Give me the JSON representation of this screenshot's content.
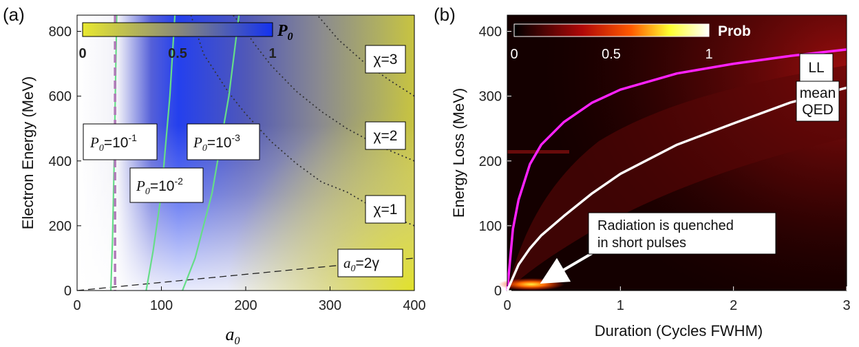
{
  "chart_data": [
    {
      "panel_label": "(a)",
      "type": "heatmap",
      "xlabel": "a",
      "xlabel_sub": "0",
      "ylabel": "Electron Energy (MeV)",
      "xlim": [
        0,
        400
      ],
      "ylim": [
        0,
        850
      ],
      "xticks": [
        "0",
        "100",
        "200",
        "300",
        "400"
      ],
      "yticks": [
        "0",
        "200",
        "400",
        "600",
        "800"
      ],
      "colorbar": {
        "label": "P",
        "label_sub": "0",
        "ticks": [
          "0",
          "0.5",
          "1"
        ],
        "range": [
          0,
          1
        ],
        "colors": [
          "#e8e830",
          "#8a8a78",
          "#1432f0"
        ]
      },
      "p0_contours": [
        {
          "level": "10",
          "exp": "-1",
          "color": "#66dd88",
          "points": [
            [
              40,
              0
            ],
            [
              42,
              150
            ],
            [
              44,
              400
            ],
            [
              46,
              700
            ],
            [
              47,
              850
            ]
          ]
        },
        {
          "level": "10",
          "exp": "-2",
          "color": "#66dd88",
          "points": [
            [
              82,
              0
            ],
            [
              90,
              120
            ],
            [
              100,
              300
            ],
            [
              110,
              600
            ],
            [
              116,
              850
            ]
          ]
        },
        {
          "level": "10",
          "exp": "-3",
          "color": "#66dd88",
          "points": [
            [
              125,
              0
            ],
            [
              140,
              100
            ],
            [
              160,
              300
            ],
            [
              180,
              600
            ],
            [
              192,
              850
            ]
          ]
        }
      ],
      "chi_contours": [
        {
          "label": "χ=1",
          "points": [
            [
              400,
              200
            ],
            [
              360,
              243
            ],
            [
              320,
              304
            ],
            [
              290,
              335
            ],
            [
              260,
              392
            ],
            [
              230,
              460
            ],
            [
              200,
              545
            ],
            [
              180,
              610
            ],
            [
              150,
              730
            ],
            [
              135,
              850
            ]
          ]
        },
        {
          "label": "χ=2",
          "points": [
            [
              400,
              400
            ],
            [
              360,
              444
            ],
            [
              320,
              500
            ],
            [
              290,
              552
            ],
            [
              260,
              615
            ],
            [
              230,
              695
            ],
            [
              210,
              762
            ],
            [
              195,
              820
            ],
            [
              185,
              850
            ]
          ]
        },
        {
          "label": "χ=3",
          "points": [
            [
              400,
              600
            ],
            [
              370,
              650
            ],
            [
              340,
              705
            ],
            [
              310,
              774
            ],
            [
              285,
              850
            ]
          ]
        }
      ],
      "vline": {
        "x": 45,
        "color": "#b07ab8"
      },
      "line_a0_2gamma": {
        "label_prefix": "a",
        "label_sub": "0",
        "label_suffix": "=2γ",
        "points": [
          [
            0,
            0
          ],
          [
            400,
            100
          ]
        ]
      },
      "box_labels": [
        {
          "prefix": "P",
          "sub": "0",
          "base": "=10",
          "exp": "-1"
        },
        {
          "prefix": "P",
          "sub": "0",
          "base": "=10",
          "exp": "-2"
        },
        {
          "prefix": "P",
          "sub": "0",
          "base": "=10",
          "exp": "-3"
        }
      ]
    },
    {
      "panel_label": "(b)",
      "type": "heatmap",
      "xlabel": "Duration (Cycles FWHM)",
      "ylabel": "Energy Loss (MeV)",
      "xlim": [
        0,
        3
      ],
      "ylim": [
        0,
        425
      ],
      "xticks": [
        "0",
        "1",
        "2",
        "3"
      ],
      "yticks": [
        "0",
        "100",
        "200",
        "300",
        "400"
      ],
      "colorbar": {
        "label": "Prob",
        "ticks": [
          "0",
          "0.5",
          "1"
        ],
        "range": [
          0,
          1
        ],
        "colors": [
          "#000000",
          "#c01010",
          "#ff6a00",
          "#ffff30",
          "#ffffff"
        ]
      },
      "series": [
        {
          "name": "LL",
          "color": "#ff22ff",
          "x": [
            0,
            0.05,
            0.1,
            0.2,
            0.3,
            0.5,
            0.75,
            1.0,
            1.5,
            2.0,
            2.5,
            3.0
          ],
          "y": [
            0,
            95,
            140,
            195,
            225,
            260,
            290,
            310,
            335,
            350,
            362,
            372
          ]
        },
        {
          "name": "mean QED",
          "color": "#ffffff",
          "x": [
            0,
            0.1,
            0.2,
            0.3,
            0.5,
            0.75,
            1.0,
            1.5,
            2.0,
            2.5,
            3.0
          ],
          "y": [
            0,
            40,
            65,
            85,
            115,
            150,
            180,
            225,
            258,
            290,
            313
          ]
        }
      ],
      "annotation": {
        "line1": "Radiation is quenched",
        "line2": "in short pulses",
        "arrow_to": [
          0.3,
          15
        ]
      },
      "series_labels": [
        {
          "text": "LL"
        },
        {
          "line1": "mean",
          "line2": "QED"
        }
      ]
    }
  ]
}
